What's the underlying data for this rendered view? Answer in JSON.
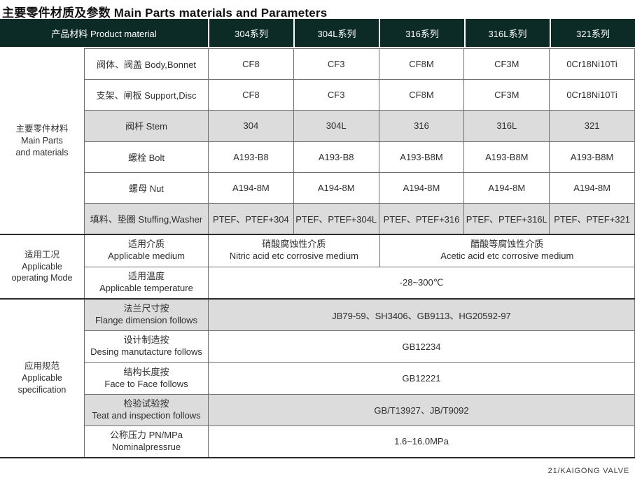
{
  "page": {
    "title": "主要零件材质及参数 Main Parts materials and Parameters",
    "footer": "21/KAIGONG VALVE"
  },
  "colors": {
    "header_bg": "#0d2b26",
    "row_gray": "#dcdcdc",
    "header_text": "#ffffff"
  },
  "header": {
    "product_material": "产品材料 Product material",
    "series": [
      "304系列",
      "304L系列",
      "316系列",
      "316L系列",
      "321系列"
    ]
  },
  "parts": {
    "group": [
      "主要零件材料",
      "Main Parts",
      "and materials"
    ],
    "rows": [
      {
        "label": "阀体、阀盖 Body,Bonnet",
        "values": [
          "CF8",
          "CF3",
          "CF8M",
          "CF3M",
          "0Cr18Ni10Ti"
        ]
      },
      {
        "label": "支架、闸板 Support,Disc",
        "values": [
          "CF8",
          "CF3",
          "CF8M",
          "CF3M",
          "0Cr18Ni10Ti"
        ]
      },
      {
        "label": "阀杆 Stem",
        "values": [
          "304",
          "304L",
          "316",
          "316L",
          "321"
        ]
      },
      {
        "label": "螺栓 Bolt",
        "values": [
          "A193-B8",
          "A193-B8",
          "A193-B8M",
          "A193-B8M",
          "A193-B8M"
        ]
      },
      {
        "label": "螺母 Nut",
        "values": [
          "A194-8M",
          "A194-8M",
          "A194-8M",
          "A194-8M",
          "A194-8M"
        ]
      },
      {
        "label": "填料、垫圈 Stuffing,Washer",
        "values": [
          "PTEF、PTEF+304",
          "PTEF、PTEF+304L",
          "PTEF、PTEF+316",
          "PTEF、PTEF+316L",
          "PTEF、PTEF+321"
        ]
      }
    ]
  },
  "operating": {
    "group": [
      "适用工况",
      "Applicable",
      "operating Mode"
    ],
    "medium": {
      "label_zh": "适用介质",
      "label_en": "Applicable medium",
      "nitric_zh": "硝酸腐蚀性介质",
      "nitric_en": "Nitric acid etc corrosive medium",
      "acetic_zh": "醋酸等腐蚀性介质",
      "acetic_en": "Acetic acid etc corrosive medium"
    },
    "temperature": {
      "label_zh": "适用温度",
      "label_en": "Applicable temperature",
      "value": "-28~300℃"
    }
  },
  "specification": {
    "group": [
      "应用规范",
      "Applicable",
      "specification"
    ],
    "rows": [
      {
        "label_zh": "法兰尺寸按",
        "label_en": "Flange dimension follows",
        "value": "JB79-59、SH3406、GB9113、HG20592-97"
      },
      {
        "label_zh": "设计制造按",
        "label_en": "Desing manutacture follows",
        "value": "GB12234"
      },
      {
        "label_zh": "结构长度按",
        "label_en": "Face to Face follows",
        "value": "GB12221"
      },
      {
        "label_zh": "检验试验按",
        "label_en": "Teat and inspection follows",
        "value": "GB/T13927、JB/T9092"
      },
      {
        "label_zh": "公称压力 PN/MPa",
        "label_en": "Nominalpressrue",
        "value": "1.6~16.0MPa"
      }
    ]
  }
}
